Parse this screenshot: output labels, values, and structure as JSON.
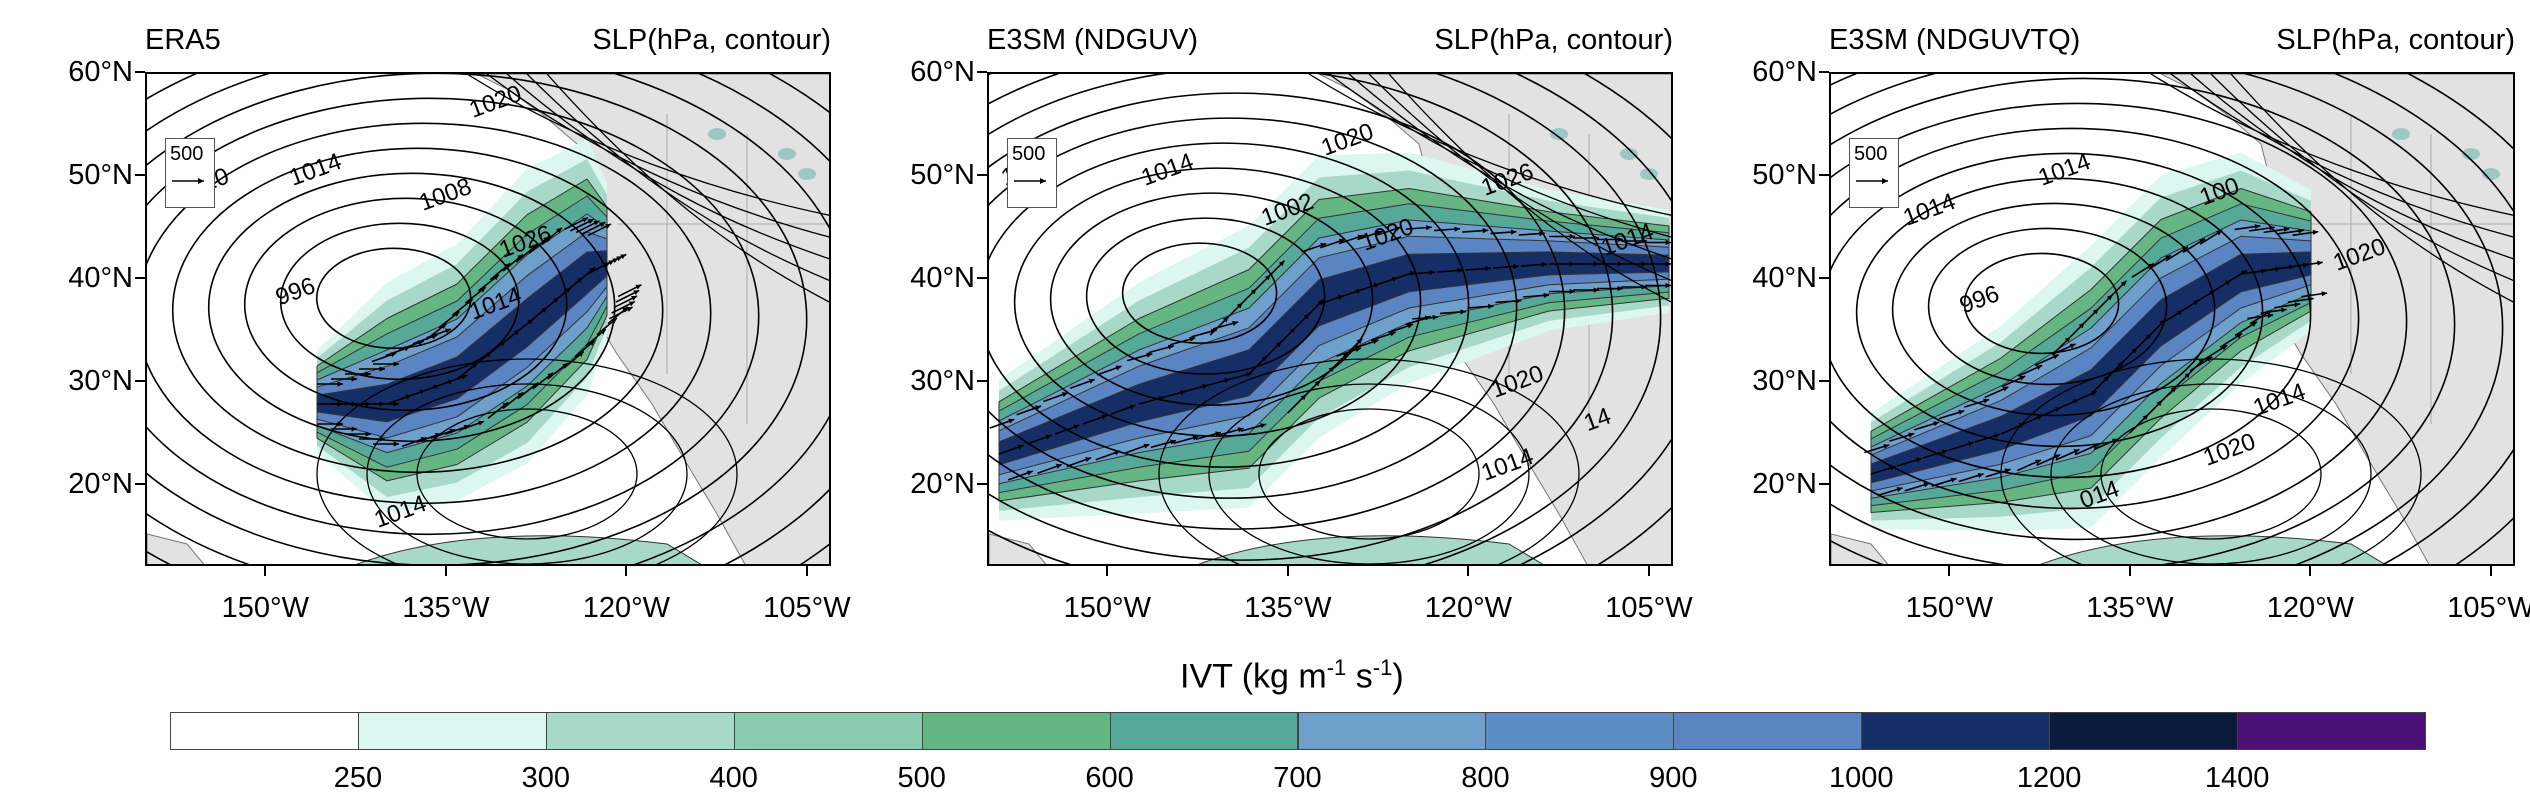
{
  "chart_data": {
    "type": "map-contour",
    "panels": [
      {
        "name": "ERA5",
        "variable_label": "SLP(hPa, contour)",
        "reference_vector": "500",
        "contour_labels": [
          "20",
          "1014",
          "1008",
          "996",
          "1020",
          "1026",
          "1014",
          "1014"
        ]
      },
      {
        "name": "E3SM (NDGUV)",
        "variable_label": "SLP(hPa, contour)",
        "reference_vector": "500",
        "contour_labels": [
          "1020",
          "1014",
          "1002",
          "1020",
          "1026",
          "1014",
          "1020",
          "1020",
          "1014",
          "14"
        ]
      },
      {
        "name": "E3SM (NDGUVTQ)",
        "variable_label": "SLP(hPa, contour)",
        "reference_vector": "500",
        "contour_labels": [
          "1014",
          "1014",
          "100",
          "996",
          "1020",
          "1014",
          "1020",
          "014"
        ]
      }
    ],
    "lat_ticks": [
      "60°N",
      "50°N",
      "40°N",
      "30°N",
      "20°N"
    ],
    "lon_ticks": [
      "150°W",
      "135°W",
      "120°W",
      "105°W"
    ],
    "colorbar": {
      "title": "IVT (kg m",
      "title_sup1": "-1",
      "title_mid": " s",
      "title_sup2": "-1",
      "title_end": ")",
      "tick_labels": [
        "250",
        "300",
        "400",
        "500",
        "600",
        "700",
        "800",
        "900",
        "1000",
        "1200",
        "1400"
      ],
      "colors": [
        "#ffffff",
        "#dcf7f0",
        "#a8d8c8",
        "#8ccbb0",
        "#66b684",
        "#56a898",
        "#6f9fcb",
        "#5c8ec5",
        "#5b84c2",
        "#152e66",
        "#0b1a3a",
        "#4a1073"
      ]
    },
    "colors": {
      "land": "#e2e2e2",
      "lake": "#9cc8c4",
      "contour": "#000000"
    }
  }
}
